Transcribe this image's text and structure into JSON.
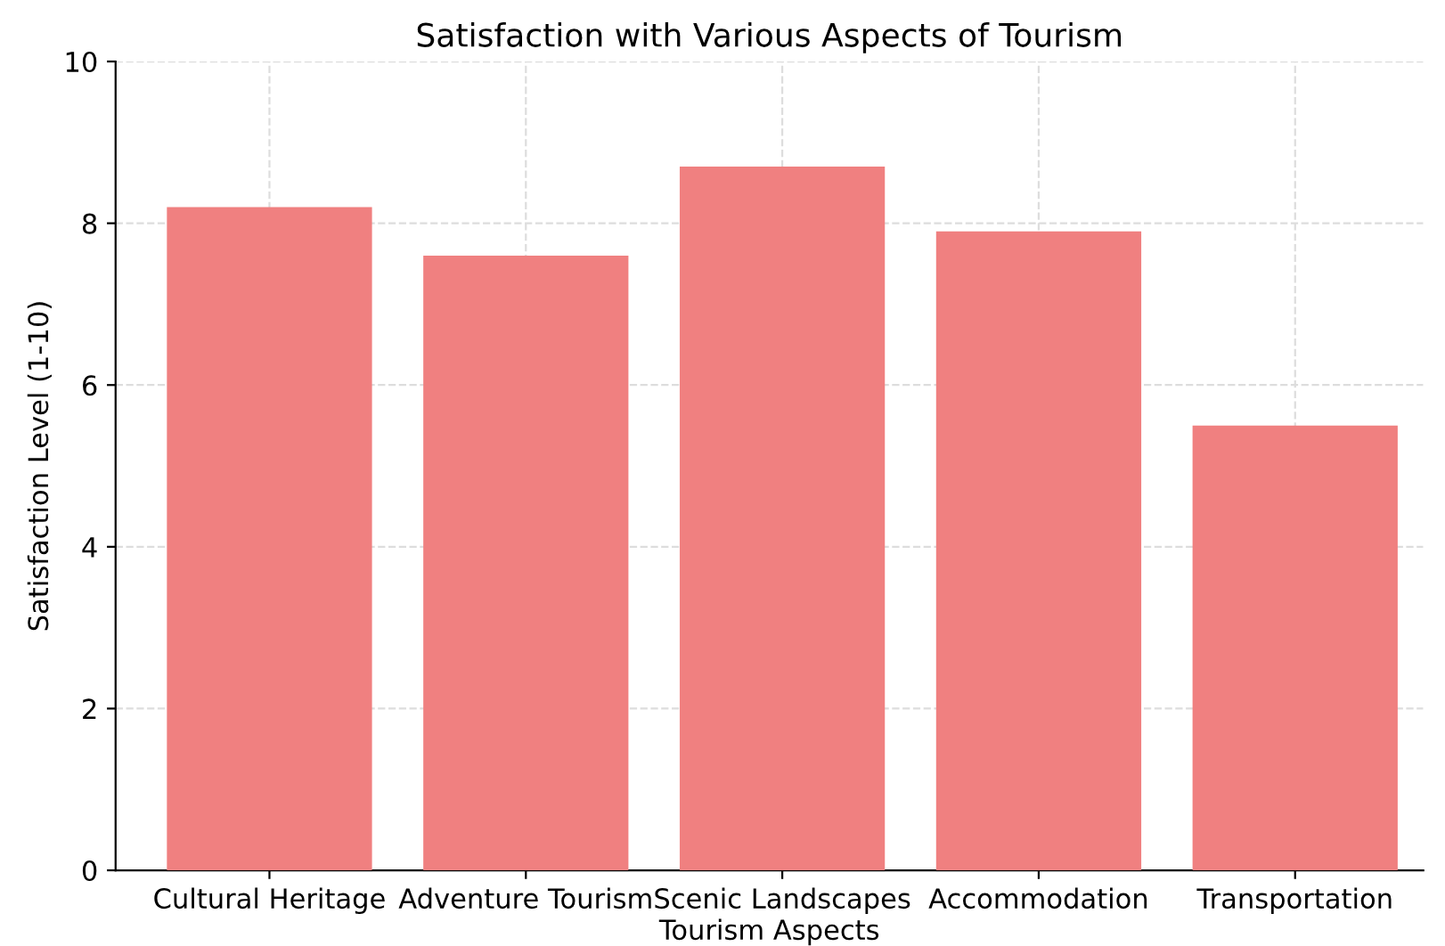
{
  "chart_data": {
    "type": "bar",
    "title": "Satisfaction with Various Aspects of Tourism",
    "xlabel": "Tourism Aspects",
    "ylabel": "Satisfaction Level (1-10)",
    "categories": [
      "Cultural Heritage",
      "Adventure Tourism",
      "Scenic Landscapes",
      "Accommodation",
      "Transportation"
    ],
    "values": [
      8.2,
      7.6,
      8.7,
      7.9,
      5.5
    ],
    "color": "#f08080",
    "ylim": [
      0,
      10
    ],
    "yticks": [
      0,
      2,
      4,
      6,
      8,
      10
    ],
    "grid": true
  }
}
